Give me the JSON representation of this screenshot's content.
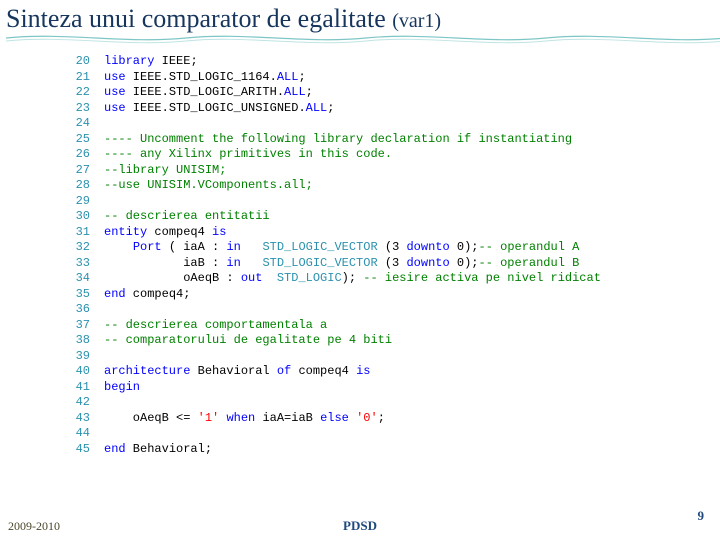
{
  "title_main": "Sinteza unui comparator de egalitate ",
  "title_var": "(var1)",
  "colors": {
    "title": "#17365d",
    "line_number": "#2b91af",
    "keyword": "#0000ff",
    "identifier": "#000000",
    "type": "#2b91af",
    "string": "#ff0000",
    "comment": "#008000",
    "footer_year": "#4a452a",
    "footer_text": "#1f497d",
    "wave_stroke": "#7ec6c6"
  },
  "code_lines": [
    {
      "n": 20,
      "tokens": [
        [
          "kw",
          "library"
        ],
        [
          "id",
          " IEEE"
        ],
        [
          "op",
          ";"
        ]
      ]
    },
    {
      "n": 21,
      "tokens": [
        [
          "kw",
          "use"
        ],
        [
          "id",
          " IEEE.STD_LOGIC_1164."
        ],
        [
          "kw",
          "ALL"
        ],
        [
          "op",
          ";"
        ]
      ]
    },
    {
      "n": 22,
      "tokens": [
        [
          "kw",
          "use"
        ],
        [
          "id",
          " IEEE.STD_LOGIC_ARITH."
        ],
        [
          "kw",
          "ALL"
        ],
        [
          "op",
          ";"
        ]
      ]
    },
    {
      "n": 23,
      "tokens": [
        [
          "kw",
          "use"
        ],
        [
          "id",
          " IEEE.STD_LOGIC_UNSIGNED."
        ],
        [
          "kw",
          "ALL"
        ],
        [
          "op",
          ";"
        ]
      ]
    },
    {
      "n": 24,
      "tokens": []
    },
    {
      "n": 25,
      "tokens": [
        [
          "cmt",
          "---- Uncomment the following library declaration if instantiating"
        ]
      ]
    },
    {
      "n": 26,
      "tokens": [
        [
          "cmt",
          "---- any Xilinx primitives in this code."
        ]
      ]
    },
    {
      "n": 27,
      "tokens": [
        [
          "cmt",
          "--library UNISIM;"
        ]
      ]
    },
    {
      "n": 28,
      "tokens": [
        [
          "cmt",
          "--use UNISIM.VComponents.all;"
        ]
      ]
    },
    {
      "n": 29,
      "tokens": []
    },
    {
      "n": 30,
      "tokens": [
        [
          "cmt",
          "-- descrierea entitatii"
        ]
      ]
    },
    {
      "n": 31,
      "tokens": [
        [
          "kw",
          "entity"
        ],
        [
          "id",
          " compeq4 "
        ],
        [
          "kw",
          "is"
        ]
      ]
    },
    {
      "n": 32,
      "tokens": [
        [
          "id",
          "    "
        ],
        [
          "kw",
          "Port"
        ],
        [
          "id",
          " ( iaA : "
        ],
        [
          "kw",
          "in"
        ],
        [
          "id",
          "   "
        ],
        [
          "type",
          "STD_LOGIC_VECTOR"
        ],
        [
          "id",
          " (3 "
        ],
        [
          "kw",
          "downto"
        ],
        [
          "id",
          " 0);"
        ],
        [
          "cmt",
          "-- operandul A"
        ]
      ]
    },
    {
      "n": 33,
      "tokens": [
        [
          "id",
          "           iaB : "
        ],
        [
          "kw",
          "in"
        ],
        [
          "id",
          "   "
        ],
        [
          "type",
          "STD_LOGIC_VECTOR"
        ],
        [
          "id",
          " (3 "
        ],
        [
          "kw",
          "downto"
        ],
        [
          "id",
          " 0);"
        ],
        [
          "cmt",
          "-- operandul B"
        ]
      ]
    },
    {
      "n": 34,
      "tokens": [
        [
          "id",
          "           oAeqB : "
        ],
        [
          "kw",
          "out"
        ],
        [
          "id",
          "  "
        ],
        [
          "type",
          "STD_LOGIC"
        ],
        [
          "id",
          "); "
        ],
        [
          "cmt",
          "-- iesire activa pe nivel ridicat"
        ]
      ]
    },
    {
      "n": 35,
      "tokens": [
        [
          "kw",
          "end"
        ],
        [
          "id",
          " compeq4;"
        ]
      ]
    },
    {
      "n": 36,
      "tokens": []
    },
    {
      "n": 37,
      "tokens": [
        [
          "cmt",
          "-- descrierea comportamentala a"
        ]
      ]
    },
    {
      "n": 38,
      "tokens": [
        [
          "cmt",
          "-- comparatorului de egalitate pe 4 biti"
        ]
      ]
    },
    {
      "n": 39,
      "tokens": []
    },
    {
      "n": 40,
      "tokens": [
        [
          "kw",
          "architecture"
        ],
        [
          "id",
          " Behavioral "
        ],
        [
          "kw",
          "of"
        ],
        [
          "id",
          " compeq4 "
        ],
        [
          "kw",
          "is"
        ]
      ]
    },
    {
      "n": 41,
      "tokens": [
        [
          "kw",
          "begin"
        ]
      ]
    },
    {
      "n": 42,
      "tokens": []
    },
    {
      "n": 43,
      "tokens": [
        [
          "id",
          "    oAeqB <= "
        ],
        [
          "str",
          "'1'"
        ],
        [
          "id",
          " "
        ],
        [
          "kw",
          "when"
        ],
        [
          "id",
          " iaA=iaB "
        ],
        [
          "kw",
          "else"
        ],
        [
          "id",
          " "
        ],
        [
          "str",
          "'0'"
        ],
        [
          "id",
          ";"
        ]
      ]
    },
    {
      "n": 44,
      "tokens": []
    },
    {
      "n": 45,
      "tokens": [
        [
          "kw",
          "end"
        ],
        [
          "id",
          " Behavioral;"
        ]
      ]
    }
  ],
  "footer": {
    "year": "2009-2010",
    "center": "PDSD",
    "page": "9"
  }
}
